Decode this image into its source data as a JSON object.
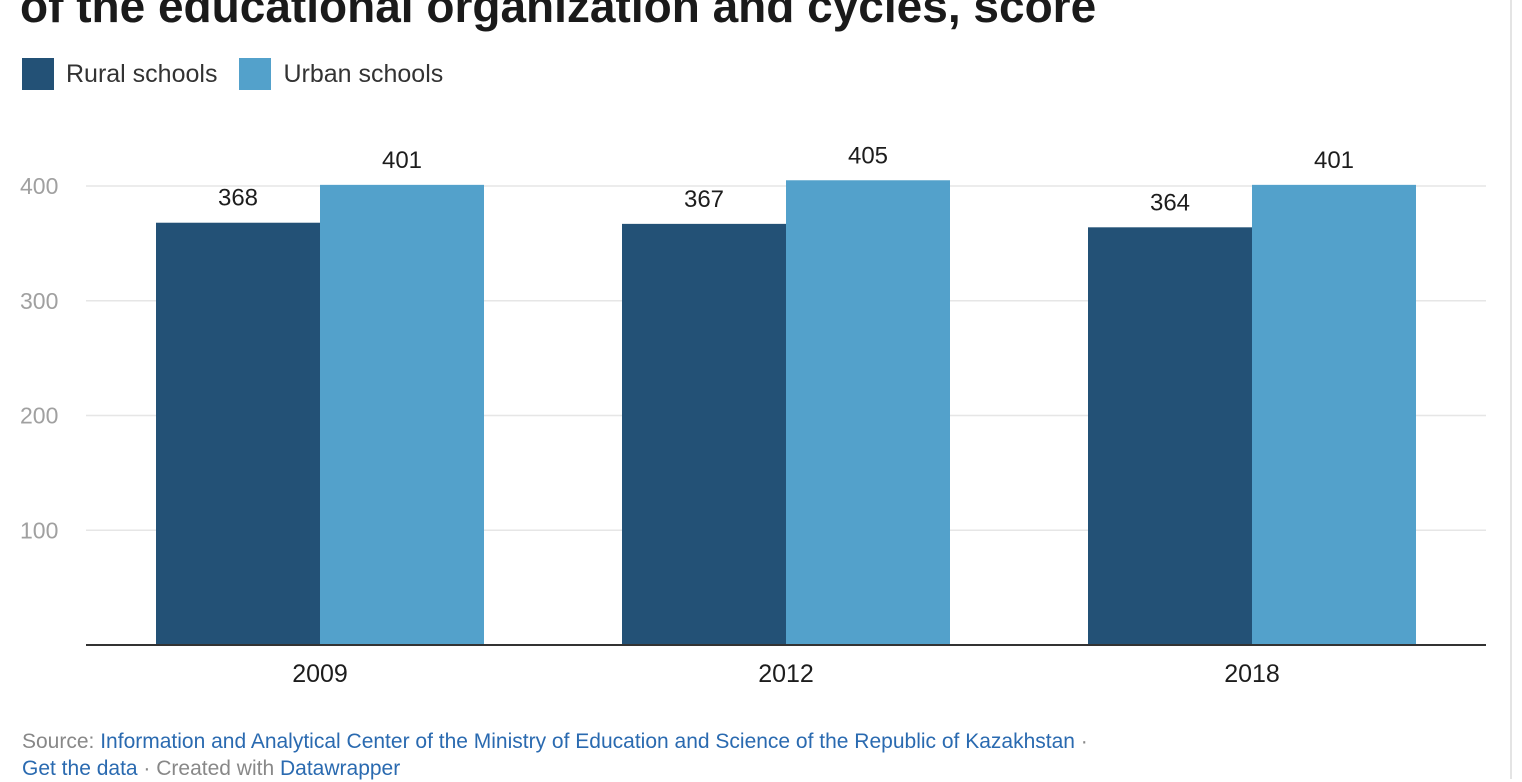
{
  "title_line": "of the educational organization and cycles, score",
  "colors": {
    "rural": "#235176",
    "urban": "#53a1cb",
    "grid": "#e6e6e6",
    "axis": "#333333",
    "tick_text": "#a0a0a0",
    "label_text": "#1d1d1d"
  },
  "footer": {
    "source_prefix": "Source: ",
    "source_text": "Information and Analytical Center of the Ministry of Education and Science of the Republic of Kazakhstan",
    "sep1": " ·",
    "get_data": "Get the data",
    "sep2": " · ",
    "created_with": "Created with ",
    "tool": "Datawrapper"
  },
  "chart_data": {
    "type": "bar",
    "categories": [
      "2009",
      "2012",
      "2018"
    ],
    "series": [
      {
        "name": "Rural schools",
        "values": [
          368,
          367,
          364
        ],
        "color": "#235176"
      },
      {
        "name": "Urban schools",
        "values": [
          401,
          405,
          401
        ],
        "color": "#53a1cb"
      }
    ],
    "yticks": [
      100,
      200,
      300,
      400
    ],
    "ylim": [
      0,
      400
    ],
    "grid": true,
    "legend": "top-left",
    "data_labels": true
  }
}
